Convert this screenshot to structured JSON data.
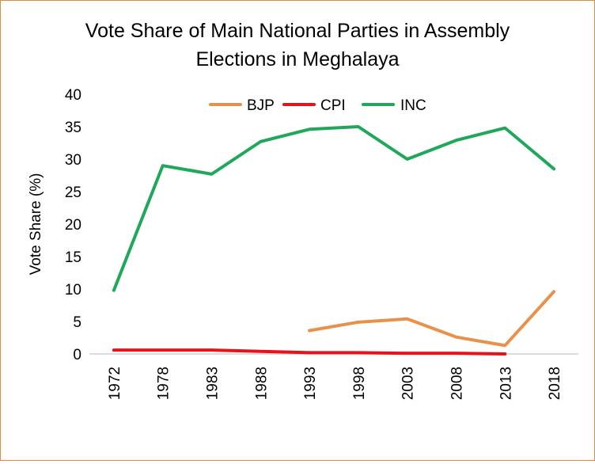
{
  "chart_data": {
    "type": "line",
    "title_lines": [
      "Vote Share of Main National Parties in Assembly",
      "Elections in Meghalaya"
    ],
    "xlabel": "",
    "ylabel": "Vote Share (%)",
    "categories": [
      "1972",
      "1978",
      "1983",
      "1988",
      "1993",
      "1998",
      "2003",
      "2008",
      "2013",
      "2018"
    ],
    "ylim": [
      0,
      40
    ],
    "yticks": [
      "0",
      "5",
      "10",
      "15",
      "20",
      "25",
      "30",
      "35",
      "40"
    ],
    "grid": false,
    "legend_position": "top",
    "series": [
      {
        "name": "BJP",
        "color": "#e8914a",
        "values": [
          null,
          null,
          null,
          null,
          3.6,
          4.9,
          5.4,
          2.6,
          1.3,
          9.6
        ]
      },
      {
        "name": "CPI",
        "color": "#e8121a",
        "values": [
          0.6,
          0.6,
          0.6,
          0.4,
          0.2,
          0.2,
          0.1,
          0.1,
          0.0,
          null
        ]
      },
      {
        "name": "INC",
        "color": "#1fa85a",
        "values": [
          9.8,
          29.0,
          27.7,
          32.7,
          34.6,
          35.0,
          30.0,
          32.9,
          34.8,
          28.5
        ]
      }
    ]
  }
}
